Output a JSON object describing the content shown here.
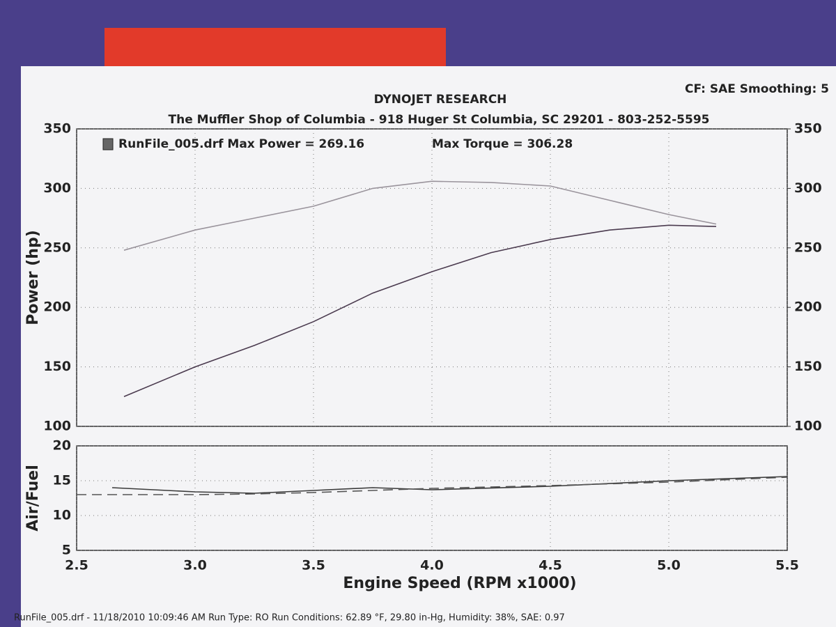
{
  "header": {
    "title": "DYNOJET RESEARCH",
    "settings": "CF: SAE  Smoothing: 5",
    "shop": "The Muffler Shop of Columbia - 918 Huger St  Columbia, SC  29201 - 803-252-5595"
  },
  "footer": "RunFile_005.drf - 11/18/2010 10:09:46 AM  Run Type: RO  Run Conditions: 62.89 °F, 29.80 in-Hg,  Humidity:  38%, SAE: 0.97",
  "chart_data": [
    {
      "type": "line",
      "annotations": [
        "RunFile_005.drf Max Power = 269.16",
        "Max Torque = 306.28"
      ],
      "ylabel": "Power (hp)",
      "x": [
        2.7,
        3.0,
        3.25,
        3.5,
        3.75,
        4.0,
        4.25,
        4.5,
        4.75,
        5.0,
        5.2
      ],
      "series": [
        {
          "color": "#4a3a4e",
          "values": [
            125,
            150,
            168,
            188,
            212,
            230,
            246,
            257,
            265,
            269,
            268
          ]
        },
        {
          "color": "#9a949c",
          "axis": "y2",
          "values": [
            248,
            265,
            275,
            285,
            300,
            306,
            305,
            302,
            290,
            278,
            270
          ]
        }
      ],
      "xlim": [
        2.5,
        5.5
      ],
      "xticks": [
        2.5,
        3,
        3.5,
        4,
        4.5,
        5,
        5.5
      ],
      "ylim": [
        100,
        350
      ],
      "yticks": [
        100,
        150,
        200,
        250,
        300,
        350
      ],
      "y2lim": [
        100,
        350
      ],
      "y2ticks": [
        100,
        150,
        200,
        250,
        300,
        350
      ],
      "grid": true
    },
    {
      "type": "line",
      "ylabel": "Air/Fuel",
      "xlabel": "Engine Speed (RPM x1000)",
      "x": [
        2.5,
        2.65,
        3.0,
        3.25,
        3.5,
        3.75,
        4.0,
        4.5,
        5.0,
        5.5
      ],
      "series": [
        {
          "color": "#3a3a3a",
          "values": [
            null,
            14,
            13.4,
            13.2,
            13.6,
            14,
            13.7,
            14.2,
            15,
            15.6
          ]
        },
        {
          "color": "#555555",
          "dash": true,
          "values": [
            13,
            13,
            13,
            13.1,
            13.3,
            13.6,
            13.9,
            14.3,
            14.8,
            15.5
          ]
        }
      ],
      "xlim": [
        2.5,
        5.5
      ],
      "xticks": [
        {
          "value": 2.5,
          "label": "2.5"
        },
        {
          "value": 3,
          "label": "3.0"
        },
        {
          "value": 3.5,
          "label": "3.5"
        },
        {
          "value": 4,
          "label": "4.0"
        },
        {
          "value": 4.5,
          "label": "4.5"
        },
        {
          "value": 5,
          "label": "5.0"
        },
        {
          "value": 5.5,
          "label": "5.5"
        }
      ],
      "ylim": [
        5,
        20
      ],
      "yticks": [
        5,
        10,
        15,
        20
      ],
      "grid": true
    }
  ]
}
